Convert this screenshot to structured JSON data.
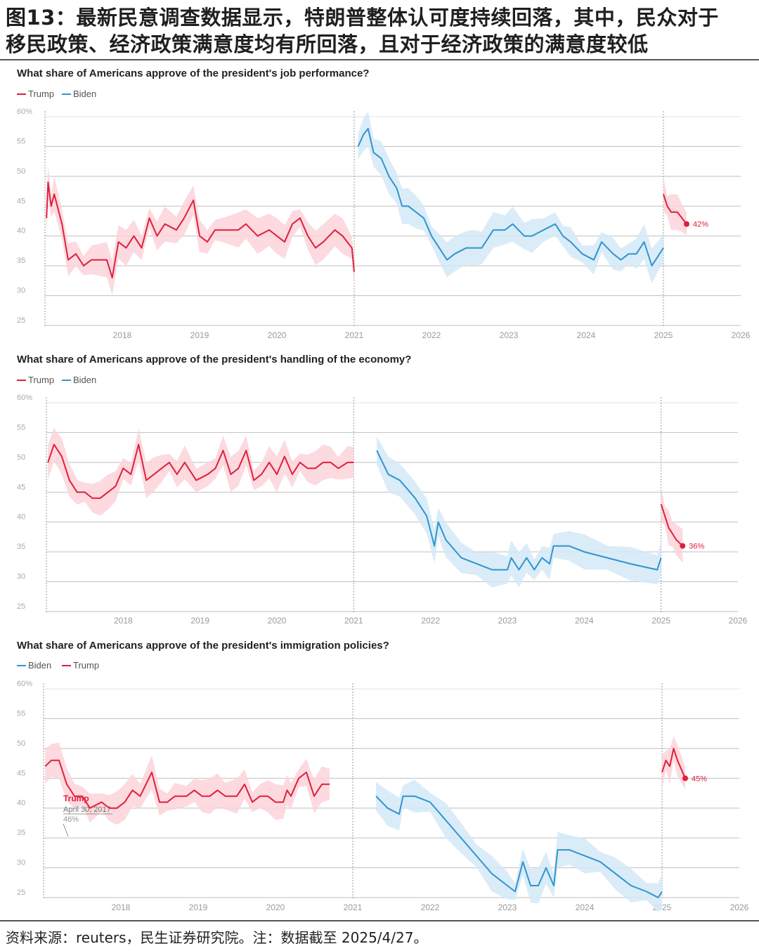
{
  "figure": {
    "title_line1": "图13：最新民意调查数据显示，特朗普整体认可度持续回落，其中，民众对于",
    "title_line2": "移民政策、经济政策满意度均有所回落，且对于经济政策的满意度较低",
    "source": "资料来源：reuters，民生证券研究院。注：数据截至 2025/4/27。"
  },
  "colors": {
    "trump": "#e0203c",
    "trump_band": "#fbd3d9",
    "biden": "#2f95d0",
    "biden_band": "#d3e9f7",
    "grid": "#bfbfbf",
    "tick": "#9a9a9a"
  },
  "chart_data": [
    {
      "type": "line",
      "title": "What share of Americans approve of the president's job performance?",
      "legend": [
        "Trump",
        "Biden"
      ],
      "x_ticks": [
        "2018",
        "2019",
        "2020",
        "2021",
        "2022",
        "2023",
        "2024",
        "2025",
        "2026"
      ],
      "y_ticks": [
        "60%",
        "55",
        "50",
        "45",
        "40",
        "35",
        "30",
        "25"
      ],
      "ylim": [
        25,
        60
      ],
      "xlim": [
        2017.0,
        2026.0
      ],
      "end_label": "42%",
      "series": [
        {
          "name": "Trump",
          "term": 1,
          "points": [
            [
              2017.02,
              43
            ],
            [
              2017.04,
              49
            ],
            [
              2017.08,
              45
            ],
            [
              2017.12,
              47
            ],
            [
              2017.18,
              44
            ],
            [
              2017.22,
              42
            ],
            [
              2017.3,
              36
            ],
            [
              2017.4,
              37
            ],
            [
              2017.5,
              35
            ],
            [
              2017.6,
              36
            ],
            [
              2017.8,
              36
            ],
            [
              2017.87,
              33
            ],
            [
              2017.95,
              39
            ],
            [
              2018.05,
              38
            ],
            [
              2018.15,
              40
            ],
            [
              2018.25,
              38
            ],
            [
              2018.35,
              43
            ],
            [
              2018.45,
              40
            ],
            [
              2018.55,
              42
            ],
            [
              2018.7,
              41
            ],
            [
              2018.8,
              43
            ],
            [
              2018.92,
              46
            ],
            [
              2019.0,
              40
            ],
            [
              2019.1,
              39
            ],
            [
              2019.2,
              41
            ],
            [
              2019.35,
              41
            ],
            [
              2019.5,
              41
            ],
            [
              2019.6,
              42
            ],
            [
              2019.75,
              40
            ],
            [
              2019.9,
              41
            ],
            [
              2020.0,
              40
            ],
            [
              2020.1,
              39
            ],
            [
              2020.2,
              42
            ],
            [
              2020.3,
              43
            ],
            [
              2020.4,
              40
            ],
            [
              2020.5,
              38
            ],
            [
              2020.6,
              39
            ],
            [
              2020.75,
              41
            ],
            [
              2020.85,
              40
            ],
            [
              2020.97,
              38
            ],
            [
              2021.0,
              34
            ]
          ]
        },
        {
          "name": "Biden",
          "term": 1,
          "points": [
            [
              2021.05,
              55
            ],
            [
              2021.12,
              57
            ],
            [
              2021.18,
              58
            ],
            [
              2021.25,
              54
            ],
            [
              2021.35,
              53
            ],
            [
              2021.45,
              50
            ],
            [
              2021.55,
              48
            ],
            [
              2021.62,
              45
            ],
            [
              2021.7,
              45
            ],
            [
              2021.8,
              44
            ],
            [
              2021.9,
              43
            ],
            [
              2022.0,
              40
            ],
            [
              2022.1,
              38
            ],
            [
              2022.2,
              36
            ],
            [
              2022.3,
              37
            ],
            [
              2022.45,
              38
            ],
            [
              2022.55,
              38
            ],
            [
              2022.65,
              38
            ],
            [
              2022.8,
              41
            ],
            [
              2022.95,
              41
            ],
            [
              2023.05,
              42
            ],
            [
              2023.2,
              40
            ],
            [
              2023.3,
              40
            ],
            [
              2023.45,
              41
            ],
            [
              2023.6,
              42
            ],
            [
              2023.7,
              40
            ],
            [
              2023.8,
              39
            ],
            [
              2023.95,
              37
            ],
            [
              2024.1,
              36
            ],
            [
              2024.2,
              39
            ],
            [
              2024.35,
              37
            ],
            [
              2024.45,
              36
            ],
            [
              2024.55,
              37
            ],
            [
              2024.65,
              37
            ],
            [
              2024.75,
              39
            ],
            [
              2024.85,
              35
            ],
            [
              2024.95,
              37
            ],
            [
              2025.0,
              38
            ]
          ]
        },
        {
          "name": "Trump",
          "term": 2,
          "points": [
            [
              2025.0,
              47
            ],
            [
              2025.05,
              45
            ],
            [
              2025.1,
              44
            ],
            [
              2025.18,
              44
            ],
            [
              2025.24,
              43
            ],
            [
              2025.3,
              42
            ]
          ]
        }
      ]
    },
    {
      "type": "line",
      "title": "What share of Americans approve of the president's handling of the economy?",
      "legend": [
        "Trump",
        "Biden"
      ],
      "x_ticks": [
        "2018",
        "2019",
        "2020",
        "2021",
        "2022",
        "2023",
        "2024",
        "2025",
        "2026"
      ],
      "y_ticks": [
        "60%",
        "55",
        "50",
        "45",
        "40",
        "35",
        "30",
        "25"
      ],
      "ylim": [
        25,
        60
      ],
      "xlim": [
        2017.0,
        2026.0
      ],
      "end_label": "36%",
      "series": [
        {
          "name": "Trump",
          "term": 1,
          "points": [
            [
              2017.02,
              50
            ],
            [
              2017.1,
              53
            ],
            [
              2017.2,
              51
            ],
            [
              2017.3,
              47
            ],
            [
              2017.4,
              45
            ],
            [
              2017.5,
              45
            ],
            [
              2017.6,
              44
            ],
            [
              2017.7,
              44
            ],
            [
              2017.8,
              45
            ],
            [
              2017.9,
              46
            ],
            [
              2018.0,
              49
            ],
            [
              2018.1,
              48
            ],
            [
              2018.2,
              53
            ],
            [
              2018.3,
              47
            ],
            [
              2018.4,
              48
            ],
            [
              2018.5,
              49
            ],
            [
              2018.6,
              50
            ],
            [
              2018.7,
              48
            ],
            [
              2018.8,
              50
            ],
            [
              2018.95,
              47
            ],
            [
              2019.1,
              48
            ],
            [
              2019.2,
              49
            ],
            [
              2019.3,
              52
            ],
            [
              2019.4,
              48
            ],
            [
              2019.5,
              49
            ],
            [
              2019.6,
              52
            ],
            [
              2019.7,
              47
            ],
            [
              2019.8,
              48
            ],
            [
              2019.9,
              50
            ],
            [
              2020.0,
              48
            ],
            [
              2020.1,
              51
            ],
            [
              2020.2,
              48
            ],
            [
              2020.3,
              50
            ],
            [
              2020.4,
              49
            ],
            [
              2020.5,
              49
            ],
            [
              2020.6,
              50
            ],
            [
              2020.7,
              50
            ],
            [
              2020.8,
              49
            ],
            [
              2020.92,
              50
            ],
            [
              2021.0,
              50
            ]
          ]
        },
        {
          "name": "Biden",
          "term": 1,
          "points": [
            [
              2021.3,
              52
            ],
            [
              2021.45,
              48
            ],
            [
              2021.6,
              47
            ],
            [
              2021.8,
              44
            ],
            [
              2021.95,
              41
            ],
            [
              2022.05,
              36
            ],
            [
              2022.1,
              40
            ],
            [
              2022.2,
              37
            ],
            [
              2022.4,
              34
            ],
            [
              2022.6,
              33
            ],
            [
              2022.8,
              32
            ],
            [
              2023.0,
              32
            ],
            [
              2023.05,
              34
            ],
            [
              2023.15,
              32
            ],
            [
              2023.25,
              34
            ],
            [
              2023.35,
              32
            ],
            [
              2023.45,
              34
            ],
            [
              2023.55,
              33
            ],
            [
              2023.6,
              36
            ],
            [
              2023.8,
              36
            ],
            [
              2024.0,
              35
            ],
            [
              2024.3,
              34
            ],
            [
              2024.6,
              33
            ],
            [
              2024.95,
              32
            ],
            [
              2025.0,
              34
            ]
          ]
        },
        {
          "name": "Trump",
          "term": 2,
          "points": [
            [
              2025.0,
              43
            ],
            [
              2025.05,
              41
            ],
            [
              2025.1,
              39
            ],
            [
              2025.15,
              38
            ],
            [
              2025.2,
              37
            ],
            [
              2025.28,
              36
            ]
          ]
        }
      ]
    },
    {
      "type": "line",
      "title": "What share of Americans approve of the president's immigration policies?",
      "legend": [
        "Biden",
        "Trump"
      ],
      "x_ticks": [
        "2018",
        "2019",
        "2020",
        "2021",
        "2022",
        "2023",
        "2024",
        "2025",
        "2026"
      ],
      "y_ticks": [
        "60%",
        "55",
        "50",
        "45",
        "40",
        "35",
        "30",
        "25"
      ],
      "ylim": [
        25,
        60
      ],
      "xlim": [
        2017.0,
        2026.0
      ],
      "end_label": "45%",
      "annotation": {
        "title": "Trump",
        "date": "April 30, 2017",
        "value": "46%"
      },
      "series": [
        {
          "name": "Trump",
          "term": 1,
          "points": [
            [
              2017.02,
              47
            ],
            [
              2017.1,
              48
            ],
            [
              2017.2,
              48
            ],
            [
              2017.3,
              44
            ],
            [
              2017.4,
              42
            ],
            [
              2017.5,
              42
            ],
            [
              2017.6,
              40
            ],
            [
              2017.75,
              41
            ],
            [
              2017.85,
              40
            ],
            [
              2017.95,
              40
            ],
            [
              2018.05,
              41
            ],
            [
              2018.15,
              43
            ],
            [
              2018.25,
              42
            ],
            [
              2018.4,
              46
            ],
            [
              2018.5,
              41
            ],
            [
              2018.6,
              41
            ],
            [
              2018.7,
              42
            ],
            [
              2018.85,
              42
            ],
            [
              2018.95,
              43
            ],
            [
              2019.05,
              42
            ],
            [
              2019.15,
              42
            ],
            [
              2019.25,
              43
            ],
            [
              2019.35,
              42
            ],
            [
              2019.5,
              42
            ],
            [
              2019.6,
              44
            ],
            [
              2019.7,
              41
            ],
            [
              2019.8,
              42
            ],
            [
              2019.9,
              42
            ],
            [
              2020.0,
              41
            ],
            [
              2020.1,
              41
            ],
            [
              2020.15,
              43
            ],
            [
              2020.2,
              42
            ],
            [
              2020.3,
              45
            ],
            [
              2020.4,
              46
            ],
            [
              2020.45,
              44
            ],
            [
              2020.5,
              42
            ],
            [
              2020.6,
              44
            ],
            [
              2020.7,
              44
            ]
          ]
        },
        {
          "name": "Biden",
          "term": 1,
          "points": [
            [
              2021.3,
              42
            ],
            [
              2021.45,
              40
            ],
            [
              2021.6,
              39
            ],
            [
              2021.65,
              42
            ],
            [
              2021.8,
              42
            ],
            [
              2022.0,
              41
            ],
            [
              2022.2,
              38
            ],
            [
              2022.4,
              35
            ],
            [
              2022.6,
              32
            ],
            [
              2022.8,
              29
            ],
            [
              2023.0,
              27
            ],
            [
              2023.1,
              26
            ],
            [
              2023.2,
              31
            ],
            [
              2023.3,
              27
            ],
            [
              2023.4,
              27
            ],
            [
              2023.5,
              30
            ],
            [
              2023.6,
              27
            ],
            [
              2023.65,
              33
            ],
            [
              2023.8,
              33
            ],
            [
              2024.0,
              32
            ],
            [
              2024.2,
              31
            ],
            [
              2024.4,
              29
            ],
            [
              2024.6,
              27
            ],
            [
              2024.8,
              26
            ],
            [
              2024.95,
              25
            ],
            [
              2025.0,
              26
            ]
          ]
        },
        {
          "name": "Trump",
          "term": 2,
          "points": [
            [
              2025.0,
              46
            ],
            [
              2025.05,
              48
            ],
            [
              2025.1,
              47
            ],
            [
              2025.15,
              50
            ],
            [
              2025.2,
              48
            ],
            [
              2025.3,
              45
            ]
          ]
        }
      ]
    }
  ]
}
